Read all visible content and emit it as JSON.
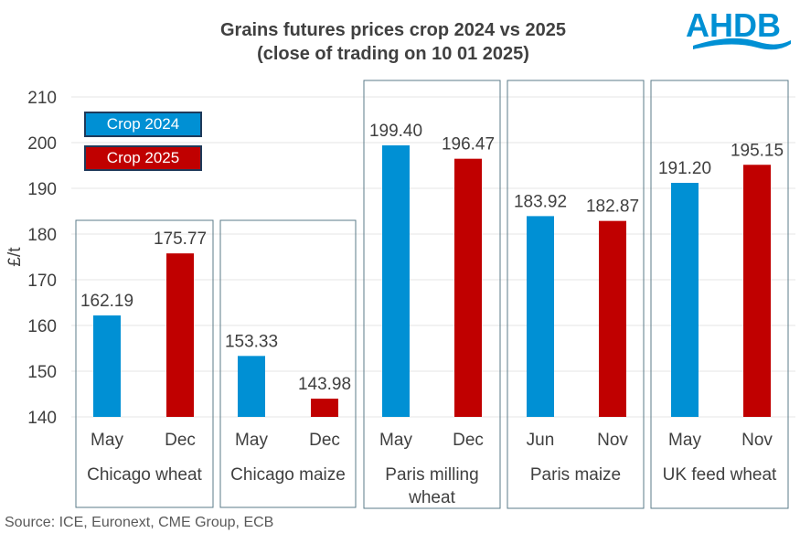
{
  "chart_data": {
    "type": "bar",
    "title": "Grains futures prices crop 2024 vs 2025",
    "subtitle": "(close of trading on 10 01 2025)",
    "ylabel": "£/t",
    "xlabel": "",
    "ylim": [
      140,
      210
    ],
    "yticks": [
      140,
      150,
      160,
      170,
      180,
      190,
      200,
      210
    ],
    "grid": true,
    "legend_position": "top-left",
    "series": [
      {
        "name": "Crop 2024",
        "color": "#0090d4"
      },
      {
        "name": "Crop 2025",
        "color": "#c00000"
      }
    ],
    "groups": [
      {
        "label": "Chicago wheat",
        "bars": [
          {
            "month": "May",
            "value": 162.19,
            "series": 0
          },
          {
            "month": "Dec",
            "value": 175.77,
            "series": 1
          }
        ]
      },
      {
        "label": "Chicago maize",
        "bars": [
          {
            "month": "May",
            "value": 153.33,
            "series": 0
          },
          {
            "month": "Dec",
            "value": 143.98,
            "series": 1
          }
        ]
      },
      {
        "label": "Paris milling wheat",
        "bars": [
          {
            "month": "May",
            "value": 199.4,
            "series": 0
          },
          {
            "month": "Dec",
            "value": 196.47,
            "series": 1
          }
        ]
      },
      {
        "label": "Paris maize",
        "bars": [
          {
            "month": "Jun",
            "value": 183.92,
            "series": 0
          },
          {
            "month": "Nov",
            "value": 182.87,
            "series": 1
          }
        ]
      },
      {
        "label": "UK feed wheat",
        "bars": [
          {
            "month": "May",
            "value": 191.2,
            "series": 0
          },
          {
            "month": "Nov",
            "value": 195.15,
            "series": 1
          }
        ]
      }
    ]
  },
  "source": "Source: ICE, Euronext, CME Group, ECB",
  "logo": {
    "text": "AHDB",
    "color": "#0090d4"
  }
}
